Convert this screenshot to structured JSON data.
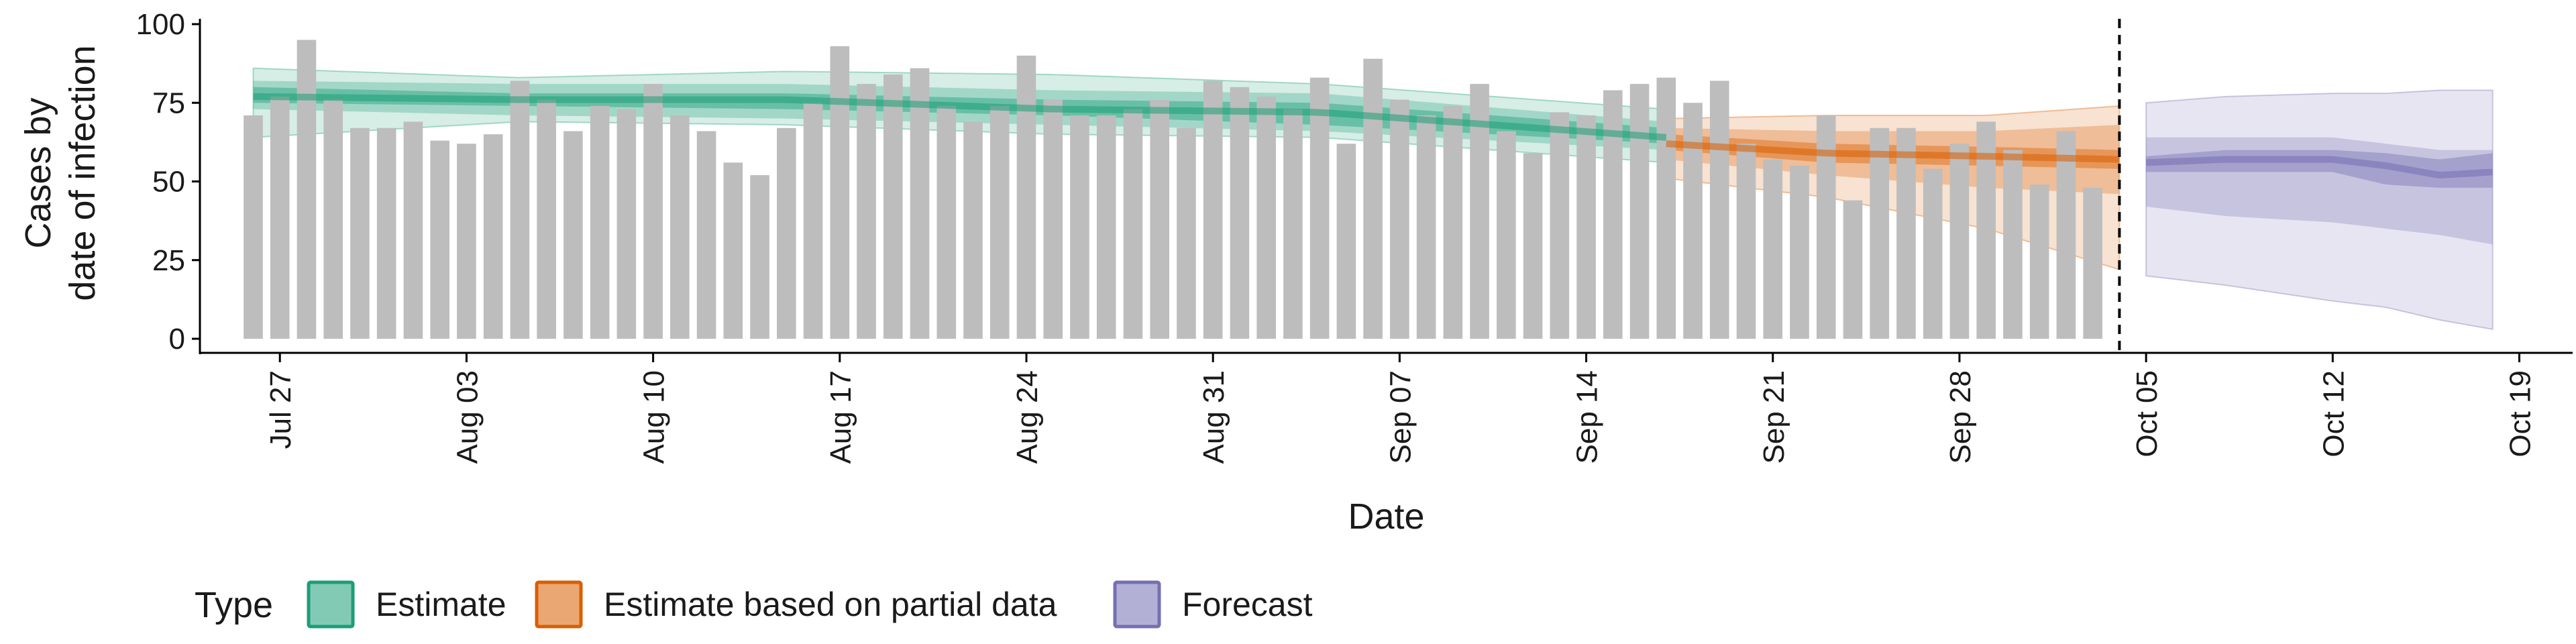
{
  "colors": {
    "bar": "#bdbdbd",
    "estimate": "#1b9e77",
    "estimate_partial": "#d95f02",
    "forecast": "#7570b3",
    "axis": "#000000",
    "vline": "#000000"
  },
  "chart_data": {
    "type": "bar+area",
    "ylabel": [
      "Cases by",
      "date of infection"
    ],
    "xlabel": "Date",
    "ylim": [
      0,
      100
    ],
    "yticks": [
      0,
      25,
      50,
      75,
      100
    ],
    "xlim": [
      "2020-07-24",
      "2020-10-21"
    ],
    "xticks": [
      {
        "date": "2020-07-27",
        "label": "Jul 27"
      },
      {
        "date": "2020-08-03",
        "label": "Aug 03"
      },
      {
        "date": "2020-08-10",
        "label": "Aug 10"
      },
      {
        "date": "2020-08-17",
        "label": "Aug 17"
      },
      {
        "date": "2020-08-24",
        "label": "Aug 24"
      },
      {
        "date": "2020-08-31",
        "label": "Aug 31"
      },
      {
        "date": "2020-09-07",
        "label": "Sep 07"
      },
      {
        "date": "2020-09-14",
        "label": "Sep 14"
      },
      {
        "date": "2020-09-21",
        "label": "Sep 21"
      },
      {
        "date": "2020-09-28",
        "label": "Sep 28"
      },
      {
        "date": "2020-10-05",
        "label": "Oct 05"
      },
      {
        "date": "2020-10-12",
        "label": "Oct 12"
      },
      {
        "date": "2020-10-19",
        "label": "Oct 19"
      }
    ],
    "bars": {
      "start_date": "2020-07-26",
      "values": [
        71,
        77,
        95,
        76,
        67,
        67,
        69,
        63,
        62,
        65,
        82,
        76,
        66,
        74,
        73,
        81,
        71,
        66,
        56,
        52,
        67,
        75,
        93,
        81,
        84,
        86,
        74,
        69,
        74,
        90,
        76,
        71,
        71,
        73,
        76,
        67,
        82,
        80,
        77,
        73,
        83,
        62,
        89,
        76,
        71,
        74,
        81,
        66,
        59,
        72,
        71,
        79,
        81,
        83,
        75,
        82,
        62,
        57,
        55,
        71,
        44,
        67,
        67,
        54,
        62,
        69,
        60,
        49,
        66,
        48
      ]
    },
    "reference_line_date": "2020-10-04",
    "series": [
      {
        "name": "Estimate",
        "start_date": "2020-07-26",
        "end_date": "2020-09-17",
        "median": [
          [
            0,
            77
          ],
          [
            10,
            76
          ],
          [
            20,
            76
          ],
          [
            30,
            73
          ],
          [
            40,
            72
          ],
          [
            53,
            64
          ]
        ],
        "inner": [
          [
            0,
            75,
            80
          ],
          [
            10,
            74,
            78
          ],
          [
            20,
            73,
            78
          ],
          [
            30,
            71,
            76
          ],
          [
            40,
            68,
            75
          ],
          [
            53,
            62,
            67
          ]
        ],
        "mid": [
          [
            0,
            73,
            82
          ],
          [
            10,
            71,
            81
          ],
          [
            20,
            70,
            81
          ],
          [
            30,
            68,
            79
          ],
          [
            40,
            66,
            78
          ],
          [
            53,
            60,
            69
          ]
        ],
        "outer": [
          [
            0,
            64,
            86
          ],
          [
            10,
            69,
            83
          ],
          [
            20,
            68,
            85
          ],
          [
            30,
            65,
            84
          ],
          [
            40,
            64,
            81
          ],
          [
            53,
            56,
            73
          ]
        ]
      },
      {
        "name": "Estimate based on partial data",
        "start_date": "2020-09-17",
        "end_date": "2020-10-04",
        "median": [
          [
            0,
            62
          ],
          [
            6,
            59
          ],
          [
            12,
            58
          ],
          [
            17,
            57
          ]
        ],
        "inner": [
          [
            0,
            60,
            65
          ],
          [
            6,
            56,
            62
          ],
          [
            12,
            55,
            61
          ],
          [
            17,
            54,
            60
          ]
        ],
        "mid": [
          [
            0,
            57,
            67
          ],
          [
            6,
            52,
            66
          ],
          [
            12,
            48,
            66
          ],
          [
            17,
            46,
            68
          ]
        ],
        "outer": [
          [
            0,
            51,
            70
          ],
          [
            6,
            45,
            71
          ],
          [
            12,
            35,
            71
          ],
          [
            17,
            22,
            74
          ]
        ]
      },
      {
        "name": "Forecast",
        "start_date": "2020-10-05",
        "end_date": "2020-10-18",
        "median": [
          [
            0,
            56
          ],
          [
            3,
            57
          ],
          [
            7,
            57
          ],
          [
            9,
            55
          ],
          [
            11,
            52
          ],
          [
            13,
            53
          ]
        ],
        "inner": [
          [
            0,
            53,
            58
          ],
          [
            3,
            53,
            60
          ],
          [
            7,
            53,
            60
          ],
          [
            9,
            49,
            59
          ],
          [
            11,
            48,
            57
          ],
          [
            13,
            48,
            59
          ]
        ],
        "mid": [
          [
            0,
            42,
            64
          ],
          [
            3,
            39,
            64
          ],
          [
            7,
            37,
            64
          ],
          [
            9,
            35,
            62
          ],
          [
            11,
            33,
            60
          ],
          [
            13,
            30,
            60
          ]
        ],
        "outer": [
          [
            0,
            20,
            75
          ],
          [
            3,
            17,
            77
          ],
          [
            7,
            12,
            78
          ],
          [
            9,
            10,
            78
          ],
          [
            11,
            6,
            79
          ],
          [
            13,
            3,
            79
          ]
        ]
      }
    ],
    "legend": {
      "title": "Type",
      "position": "bottom",
      "items": [
        {
          "label": "Estimate",
          "color": "#1b9e77"
        },
        {
          "label": "Estimate based on partial data",
          "color": "#d95f02"
        },
        {
          "label": "Forecast",
          "color": "#7570b3"
        }
      ]
    }
  }
}
